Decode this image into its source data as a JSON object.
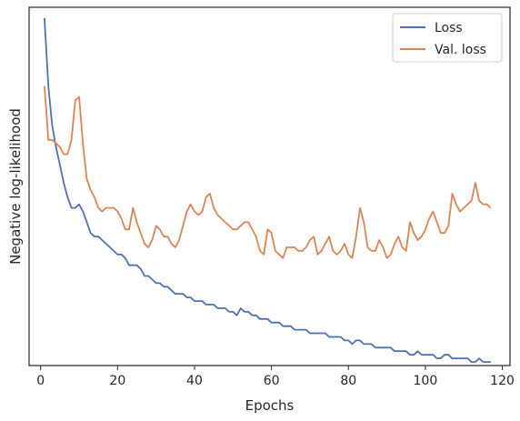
{
  "chart_data": {
    "type": "line",
    "title": "",
    "xlabel": "Epochs",
    "ylabel": "Negative log-likelihood",
    "xlim": [
      -3,
      122
    ],
    "ylim": [
      0,
      100
    ],
    "y_tick_labels_shown": false,
    "x_ticks": [
      0,
      20,
      40,
      60,
      80,
      100,
      120
    ],
    "grid": false,
    "legend": {
      "placement": "top-right"
    },
    "series": [
      {
        "name": "Loss",
        "color": "#4c72b0",
        "x": [
          1,
          2,
          3,
          4,
          5,
          6,
          7,
          8,
          9,
          10,
          11,
          12,
          13,
          14,
          15,
          16,
          17,
          18,
          19,
          20,
          21,
          22,
          23,
          24,
          25,
          26,
          27,
          28,
          29,
          30,
          31,
          32,
          33,
          34,
          35,
          36,
          37,
          38,
          39,
          40,
          41,
          42,
          43,
          44,
          45,
          46,
          47,
          48,
          49,
          50,
          51,
          52,
          53,
          54,
          55,
          56,
          57,
          58,
          59,
          60,
          61,
          62,
          63,
          64,
          65,
          66,
          67,
          68,
          69,
          70,
          71,
          72,
          73,
          74,
          75,
          76,
          77,
          78,
          79,
          80,
          81,
          82,
          83,
          84,
          85,
          86,
          87,
          88,
          89,
          90,
          91,
          92,
          93,
          94,
          95,
          96,
          97,
          98,
          99,
          100,
          101,
          102,
          103,
          104,
          105,
          106,
          107,
          108,
          109,
          110,
          111,
          112,
          113,
          114,
          115,
          116,
          117
        ],
        "y": [
          97,
          78,
          67,
          61,
          56,
          51,
          47,
          44,
          44,
          45,
          43,
          40,
          37,
          36,
          36,
          35,
          34,
          33,
          32,
          31,
          31,
          30,
          28,
          28,
          28,
          27,
          25,
          25,
          24,
          23,
          23,
          22,
          22,
          21,
          20,
          20,
          20,
          19,
          19,
          18,
          18,
          18,
          17,
          17,
          17,
          16,
          16,
          16,
          15,
          15,
          14,
          16,
          15,
          15,
          14,
          14,
          13,
          13,
          13,
          12,
          12,
          12,
          11,
          11,
          11,
          10,
          10,
          10,
          10,
          9,
          9,
          9,
          9,
          9,
          8,
          8,
          8,
          8,
          7,
          7,
          6,
          7,
          7,
          6,
          6,
          6,
          5,
          5,
          5,
          5,
          5,
          4,
          4,
          4,
          4,
          3,
          3,
          4,
          3,
          3,
          3,
          3,
          2,
          2,
          3,
          3,
          2,
          2,
          2,
          2,
          2,
          1,
          1,
          2,
          1,
          1,
          1
        ]
      },
      {
        "name": "Val. loss",
        "color": "#dd8452",
        "x": [
          1,
          2,
          3,
          4,
          5,
          6,
          7,
          8,
          9,
          10,
          11,
          12,
          13,
          14,
          15,
          16,
          17,
          18,
          19,
          20,
          21,
          22,
          23,
          24,
          25,
          26,
          27,
          28,
          29,
          30,
          31,
          32,
          33,
          34,
          35,
          36,
          37,
          38,
          39,
          40,
          41,
          42,
          43,
          44,
          45,
          46,
          47,
          48,
          49,
          50,
          51,
          52,
          53,
          54,
          55,
          56,
          57,
          58,
          59,
          60,
          61,
          62,
          63,
          64,
          65,
          66,
          67,
          68,
          69,
          70,
          71,
          72,
          73,
          74,
          75,
          76,
          77,
          78,
          79,
          80,
          81,
          82,
          83,
          84,
          85,
          86,
          87,
          88,
          89,
          90,
          91,
          92,
          93,
          94,
          95,
          96,
          97,
          98,
          99,
          100,
          101,
          102,
          103,
          104,
          105,
          106,
          107,
          108,
          109,
          110,
          111,
          112,
          113,
          114,
          115,
          116,
          117
        ],
        "y": [
          78,
          63,
          63,
          62,
          61,
          59,
          59,
          63,
          74,
          75,
          62,
          52,
          49,
          47,
          44,
          43,
          44,
          44,
          44,
          43,
          41,
          38,
          38,
          44,
          40,
          37,
          34,
          33,
          35,
          39,
          38,
          36,
          36,
          34,
          33,
          35,
          39,
          43,
          45,
          43,
          42,
          43,
          47,
          48,
          44,
          42,
          41,
          40,
          39,
          38,
          38,
          39,
          40,
          40,
          38,
          36,
          32,
          31,
          38,
          37,
          32,
          31,
          30,
          33,
          33,
          33,
          32,
          32,
          33,
          35,
          36,
          31,
          32,
          34,
          36,
          32,
          31,
          32,
          34,
          31,
          30,
          36,
          44,
          40,
          33,
          32,
          32,
          35,
          33,
          30,
          31,
          34,
          36,
          33,
          32,
          40,
          37,
          35,
          36,
          38,
          41,
          43,
          40,
          37,
          37,
          39,
          48,
          45,
          43,
          44,
          45,
          46,
          51,
          46,
          45,
          45,
          44
        ]
      }
    ]
  }
}
